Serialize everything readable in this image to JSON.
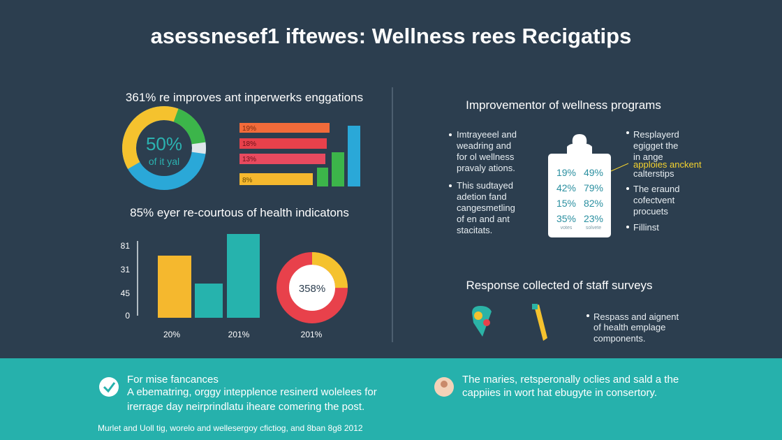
{
  "header": {
    "title": "asessnesef1 iftewes: Wellness rees Recigatips"
  },
  "engagement": {
    "title": "361% re improves ant inperwerks enggations",
    "donut_label": "50%",
    "donut_sublabel": "of it yal",
    "bar_labels": [
      "19%",
      "18%",
      "13%",
      "8%"
    ]
  },
  "health": {
    "title": "85% eyer re-courtous of health indicatons",
    "y_labels": [
      "81",
      "31",
      "45",
      "0"
    ],
    "x_labels": [
      "20%",
      "201%",
      "201%"
    ],
    "ring_label": "358%"
  },
  "programs": {
    "title": "Improvementor of wellness programs",
    "left_items": [
      [
        "Imtrayeeel and",
        "weadring and",
        "for ol wellness",
        "pravaly ations."
      ],
      [
        "This sudtayed",
        "adetion fand",
        "cangesmetling",
        "of en and ant",
        "stacitats."
      ]
    ],
    "board": [
      [
        "19%",
        "49%"
      ],
      [
        "42%",
        "79%"
      ],
      [
        "15%",
        "82%"
      ],
      [
        "35%",
        "23%"
      ]
    ],
    "board_notes": [
      "votes",
      "solvete"
    ],
    "right_items": [
      [
        "Resplayerd",
        "egigget the",
        "in ange"
      ],
      [
        "apploies anckent"
      ],
      [
        "calterstips"
      ],
      [
        "The eraund",
        "cofectvent",
        "procuets"
      ],
      [
        "Fillinst"
      ]
    ]
  },
  "surveys": {
    "title": "Response collected of staff surveys",
    "item": [
      "Respass and aignent",
      "of health emplage",
      "components."
    ]
  },
  "footer": {
    "left_title": "For mise fancances",
    "left_lines": [
      "A ebematring, orggy intepplence resinerd wolelees for",
      "irerrage day neirprindlatu iheare comering the post."
    ],
    "right_lines": [
      "The maries, retsperonally oclies and sald a the",
      "cappiies in wort hat ebugyte in consertory."
    ],
    "note": "Murlet and Uoll tig, worelo and wellesergoy cfictiog, and 8ban 8g8 2012"
  }
}
